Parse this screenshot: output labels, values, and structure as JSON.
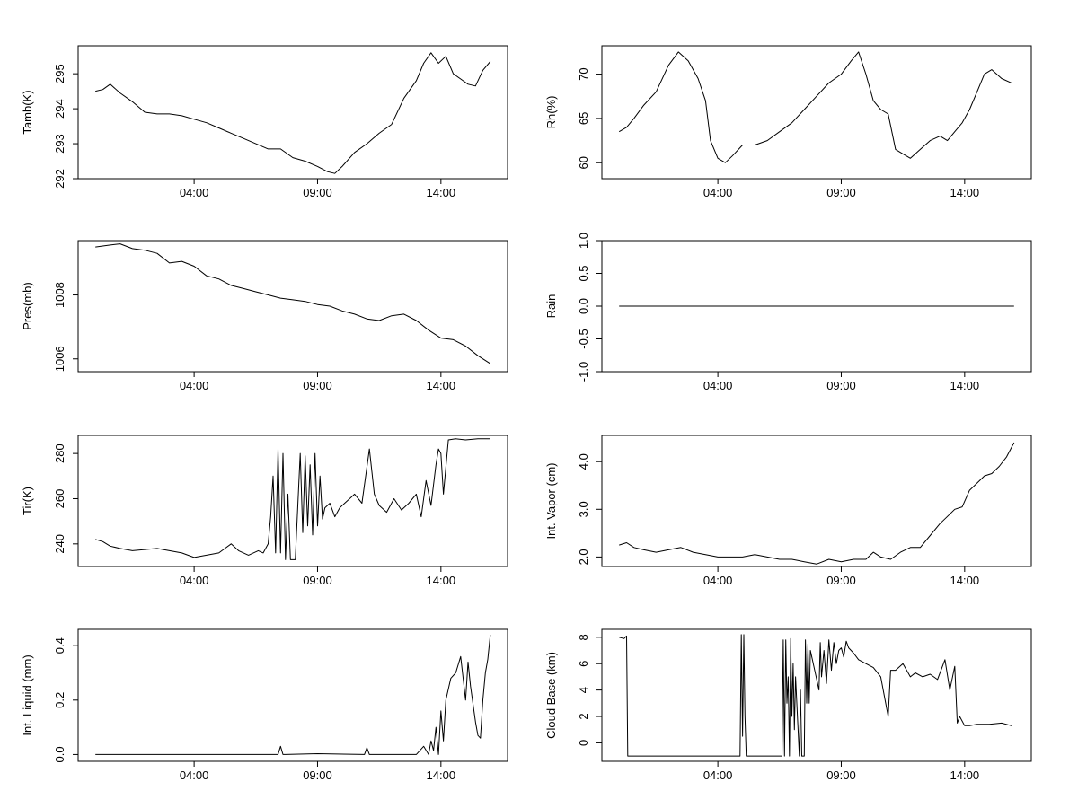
{
  "chart_data": [
    {
      "type": "line",
      "ylabel": "Tamb(K)",
      "xticks": [
        "04:00",
        "09:00",
        "14:00"
      ],
      "yticks": [
        "292",
        "293",
        "294",
        "295"
      ],
      "xlim": [
        -0.7,
        16.7
      ],
      "ylim": [
        292,
        295.8
      ],
      "color": "#000000",
      "series": [
        {
          "x": [
            0,
            0.3,
            0.6,
            1.0,
            1.5,
            2.0,
            2.5,
            3.0,
            3.5,
            4.0,
            4.5,
            5.0,
            5.5,
            6.0,
            6.5,
            7.0,
            7.5,
            8.0,
            8.5,
            9.0,
            9.4,
            9.7,
            10.0,
            10.5,
            11.0,
            11.5,
            12.0,
            12.5,
            13.0,
            13.3,
            13.6,
            13.9,
            14.2,
            14.5,
            14.8,
            15.1,
            15.4,
            15.7,
            16.0
          ],
          "y": [
            294.5,
            294.55,
            294.7,
            294.45,
            294.2,
            293.9,
            293.85,
            293.85,
            293.8,
            293.7,
            293.6,
            293.45,
            293.3,
            293.15,
            293.0,
            292.85,
            292.85,
            292.6,
            292.5,
            292.35,
            292.2,
            292.15,
            292.35,
            292.75,
            293.0,
            293.3,
            293.55,
            294.3,
            294.8,
            295.3,
            295.6,
            295.3,
            295.5,
            295.0,
            294.85,
            294.7,
            294.65,
            295.1,
            295.35
          ]
        }
      ]
    },
    {
      "type": "line",
      "ylabel": "Rh(%)",
      "xticks": [
        "04:00",
        "09:00",
        "14:00"
      ],
      "yticks": [
        "60",
        "65",
        "70"
      ],
      "xlim": [
        -0.7,
        16.7
      ],
      "ylim": [
        58.2,
        73.2
      ],
      "color": "#000000",
      "series": [
        {
          "x": [
            0,
            0.3,
            0.6,
            1.0,
            1.5,
            2.0,
            2.4,
            2.8,
            3.2,
            3.5,
            3.7,
            4.0,
            4.3,
            4.6,
            5.0,
            5.5,
            6.0,
            6.5,
            7.0,
            7.5,
            8.0,
            8.5,
            9.0,
            9.4,
            9.7,
            10.0,
            10.3,
            10.6,
            10.9,
            11.2,
            11.5,
            11.8,
            12.2,
            12.6,
            13.0,
            13.3,
            13.6,
            13.9,
            14.2,
            14.5,
            14.8,
            15.1,
            15.5,
            15.9
          ],
          "y": [
            63.5,
            64.0,
            65.0,
            66.5,
            68.0,
            71.0,
            72.5,
            71.5,
            69.5,
            67.0,
            62.5,
            60.5,
            60.0,
            60.8,
            62.0,
            62.0,
            62.5,
            63.5,
            64.5,
            66.0,
            67.5,
            69.0,
            70.0,
            71.5,
            72.5,
            70.0,
            67.0,
            66.0,
            65.5,
            61.5,
            61.0,
            60.5,
            61.5,
            62.5,
            63.0,
            62.5,
            63.5,
            64.5,
            66.0,
            68.0,
            70.0,
            70.5,
            69.5,
            69.0
          ]
        }
      ]
    },
    {
      "type": "line",
      "ylabel": "Pres(mb)",
      "xticks": [
        "04:00",
        "09:00",
        "14:00"
      ],
      "yticks": [
        "1006",
        "1008"
      ],
      "xlim": [
        -0.7,
        16.7
      ],
      "ylim": [
        1005.6,
        1009.7
      ],
      "color": "#000000",
      "series": [
        {
          "x": [
            0,
            0.5,
            1.0,
            1.5,
            2.0,
            2.5,
            3.0,
            3.5,
            4.0,
            4.5,
            5.0,
            5.5,
            6.0,
            6.5,
            7.0,
            7.5,
            8.0,
            8.5,
            9.0,
            9.5,
            10.0,
            10.5,
            11.0,
            11.5,
            12.0,
            12.5,
            13.0,
            13.5,
            14.0,
            14.5,
            15.0,
            15.5,
            16.0
          ],
          "y": [
            1009.5,
            1009.55,
            1009.6,
            1009.45,
            1009.4,
            1009.3,
            1009.0,
            1009.05,
            1008.9,
            1008.6,
            1008.5,
            1008.3,
            1008.2,
            1008.1,
            1008.0,
            1007.9,
            1007.85,
            1007.8,
            1007.7,
            1007.65,
            1007.5,
            1007.4,
            1007.25,
            1007.2,
            1007.35,
            1007.4,
            1007.2,
            1006.9,
            1006.65,
            1006.6,
            1006.4,
            1006.1,
            1005.85
          ]
        }
      ]
    },
    {
      "type": "line",
      "ylabel": "Rain",
      "xticks": [
        "04:00",
        "09:00",
        "14:00"
      ],
      "yticks": [
        "-1.0",
        "-0.5",
        "0.0",
        "0.5",
        "1.0"
      ],
      "xlim": [
        -0.7,
        16.7
      ],
      "ylim": [
        -1.0,
        1.0
      ],
      "color": "#000000",
      "series": [
        {
          "x": [
            0,
            16
          ],
          "y": [
            0,
            0
          ]
        }
      ]
    },
    {
      "type": "line",
      "ylabel": "Tir(K)",
      "xticks": [
        "04:00",
        "09:00",
        "14:00"
      ],
      "yticks": [
        "240",
        "260",
        "280"
      ],
      "xlim": [
        -0.7,
        16.7
      ],
      "ylim": [
        230,
        288
      ],
      "color": "#000000",
      "series": [
        {
          "x": [
            0,
            0.3,
            0.6,
            1.0,
            1.5,
            2.0,
            2.5,
            3.0,
            3.5,
            4.0,
            4.5,
            5.0,
            5.5,
            5.8,
            6.2,
            6.6,
            6.8,
            7.0,
            7.1,
            7.2,
            7.3,
            7.4,
            7.5,
            7.6,
            7.7,
            7.8,
            7.9,
            8.1,
            8.3,
            8.4,
            8.5,
            8.6,
            8.7,
            8.8,
            8.9,
            9.0,
            9.1,
            9.2,
            9.3,
            9.5,
            9.7,
            9.9,
            10.1,
            10.3,
            10.5,
            10.8,
            11.1,
            11.3,
            11.5,
            11.8,
            12.1,
            12.4,
            12.7,
            13.0,
            13.2,
            13.4,
            13.6,
            13.8,
            13.9,
            14.0,
            14.1,
            14.3,
            14.6,
            15.0,
            15.5,
            16.0
          ],
          "y": [
            242,
            241,
            239,
            238,
            237,
            237.5,
            238,
            237,
            236,
            234,
            235,
            236,
            240,
            237,
            235,
            237,
            236,
            240,
            252,
            270,
            236,
            282,
            236,
            280,
            233,
            262,
            233,
            233,
            280,
            245,
            279,
            248,
            275,
            244,
            280,
            248,
            270,
            251,
            256,
            258,
            252,
            256,
            258,
            260,
            262,
            258,
            282,
            262,
            257,
            254,
            260,
            255,
            258,
            262,
            252,
            268,
            257,
            275,
            282,
            280,
            262,
            286,
            286.5,
            286,
            286.5,
            286.5
          ]
        }
      ]
    },
    {
      "type": "line",
      "ylabel": "Int. Vapor (cm)",
      "xticks": [
        "04:00",
        "09:00",
        "14:00"
      ],
      "yticks": [
        "2.0",
        "3.0",
        "4.0"
      ],
      "xlim": [
        -0.7,
        16.7
      ],
      "ylim": [
        1.8,
        4.55
      ],
      "color": "#000000",
      "series": [
        {
          "x": [
            0,
            0.3,
            0.6,
            1.0,
            1.5,
            2.0,
            2.5,
            3.0,
            3.5,
            4.0,
            4.5,
            5.0,
            5.5,
            6.0,
            6.5,
            7.0,
            7.5,
            8.0,
            8.5,
            9.0,
            9.5,
            10.0,
            10.3,
            10.6,
            11.0,
            11.4,
            11.8,
            12.2,
            12.6,
            13.0,
            13.3,
            13.6,
            13.9,
            14.2,
            14.5,
            14.8,
            15.1,
            15.4,
            15.7,
            16.0
          ],
          "y": [
            2.25,
            2.3,
            2.2,
            2.15,
            2.1,
            2.15,
            2.2,
            2.1,
            2.05,
            2.0,
            2.0,
            2.0,
            2.05,
            2.0,
            1.95,
            1.95,
            1.9,
            1.85,
            1.95,
            1.9,
            1.95,
            1.95,
            2.1,
            2.0,
            1.95,
            2.1,
            2.2,
            2.2,
            2.45,
            2.7,
            2.85,
            3.0,
            3.05,
            3.4,
            3.55,
            3.7,
            3.75,
            3.9,
            4.1,
            4.4
          ]
        }
      ]
    },
    {
      "type": "line",
      "ylabel": "Int. Liquid (mm)",
      "xticks": [
        "04:00",
        "09:00",
        "14:00"
      ],
      "yticks": [
        "0.0",
        "0.2",
        "0.4"
      ],
      "xlim": [
        -0.7,
        16.7
      ],
      "ylim": [
        -0.025,
        0.46
      ],
      "color": "#000000",
      "series": [
        {
          "x": [
            0,
            7.4,
            7.5,
            7.6,
            7.7,
            9.0,
            10.9,
            11.0,
            11.1,
            13.0,
            13.3,
            13.5,
            13.6,
            13.7,
            13.8,
            13.9,
            14.0,
            14.1,
            14.2,
            14.4,
            14.6,
            14.8,
            15.0,
            15.1,
            15.2,
            15.4,
            15.5,
            15.6,
            15.7,
            15.8,
            15.9,
            16.0
          ],
          "y": [
            0,
            0,
            0.03,
            0,
            0,
            0.003,
            0,
            0.025,
            0,
            0,
            0.03,
            0.0,
            0.05,
            0.015,
            0.1,
            0.0,
            0.16,
            0.05,
            0.2,
            0.28,
            0.3,
            0.36,
            0.2,
            0.34,
            0.25,
            0.12,
            0.07,
            0.06,
            0.2,
            0.3,
            0.35,
            0.44
          ]
        }
      ]
    },
    {
      "type": "line",
      "ylabel": "Cloud Base (km)",
      "xticks": [
        "04:00",
        "09:00",
        "14:00"
      ],
      "yticks": [
        "0",
        "2",
        "4",
        "6",
        "8"
      ],
      "xlim": [
        -0.7,
        16.7
      ],
      "ylim": [
        -1.4,
        8.6
      ],
      "color": "#000000",
      "series": [
        {
          "x": [
            0,
            0.2,
            0.3,
            0.35,
            0.4,
            4.9,
            4.95,
            5.0,
            5.05,
            5.1,
            5.15,
            5.2,
            6.6,
            6.65,
            6.7,
            6.75,
            6.8,
            6.85,
            6.9,
            6.95,
            7.0,
            7.05,
            7.1,
            7.15,
            7.2,
            7.3,
            7.35,
            7.4,
            7.5,
            7.55,
            7.6,
            7.65,
            7.7,
            7.75,
            8.1,
            8.15,
            8.2,
            8.3,
            8.4,
            8.5,
            8.6,
            8.7,
            8.8,
            8.9,
            9.0,
            9.1,
            9.2,
            9.3,
            9.5,
            9.7,
            10.0,
            10.3,
            10.6,
            10.9,
            11.0,
            11.2,
            11.5,
            11.8,
            12.0,
            12.3,
            12.6,
            12.9,
            13.2,
            13.4,
            13.6,
            13.7,
            13.8,
            14.0,
            14.2,
            14.5,
            15.0,
            15.5,
            15.9
          ],
          "y": [
            8.0,
            7.9,
            8.1,
            -1.0,
            -1.0,
            -1.0,
            8.2,
            0.5,
            8.2,
            2.0,
            -1.0,
            -1.0,
            -1.0,
            7.8,
            -1.0,
            7.8,
            3.0,
            5.0,
            -1.0,
            7.9,
            2.0,
            6.0,
            1.0,
            5.0,
            3.0,
            -1.0,
            4.0,
            -1.0,
            -1.0,
            7.8,
            3.0,
            7.5,
            3.0,
            7.0,
            4.0,
            7.6,
            5.0,
            7.0,
            4.5,
            7.8,
            5.5,
            7.6,
            6.0,
            7.0,
            7.2,
            6.5,
            7.7,
            7.2,
            6.8,
            6.3,
            6.0,
            5.7,
            5.0,
            2.0,
            5.5,
            5.5,
            6.0,
            5.0,
            5.3,
            5.0,
            5.2,
            4.8,
            6.3,
            4.0,
            5.8,
            1.5,
            2.0,
            1.3,
            1.3,
            1.4,
            1.4,
            1.5,
            1.3
          ]
        }
      ]
    }
  ]
}
